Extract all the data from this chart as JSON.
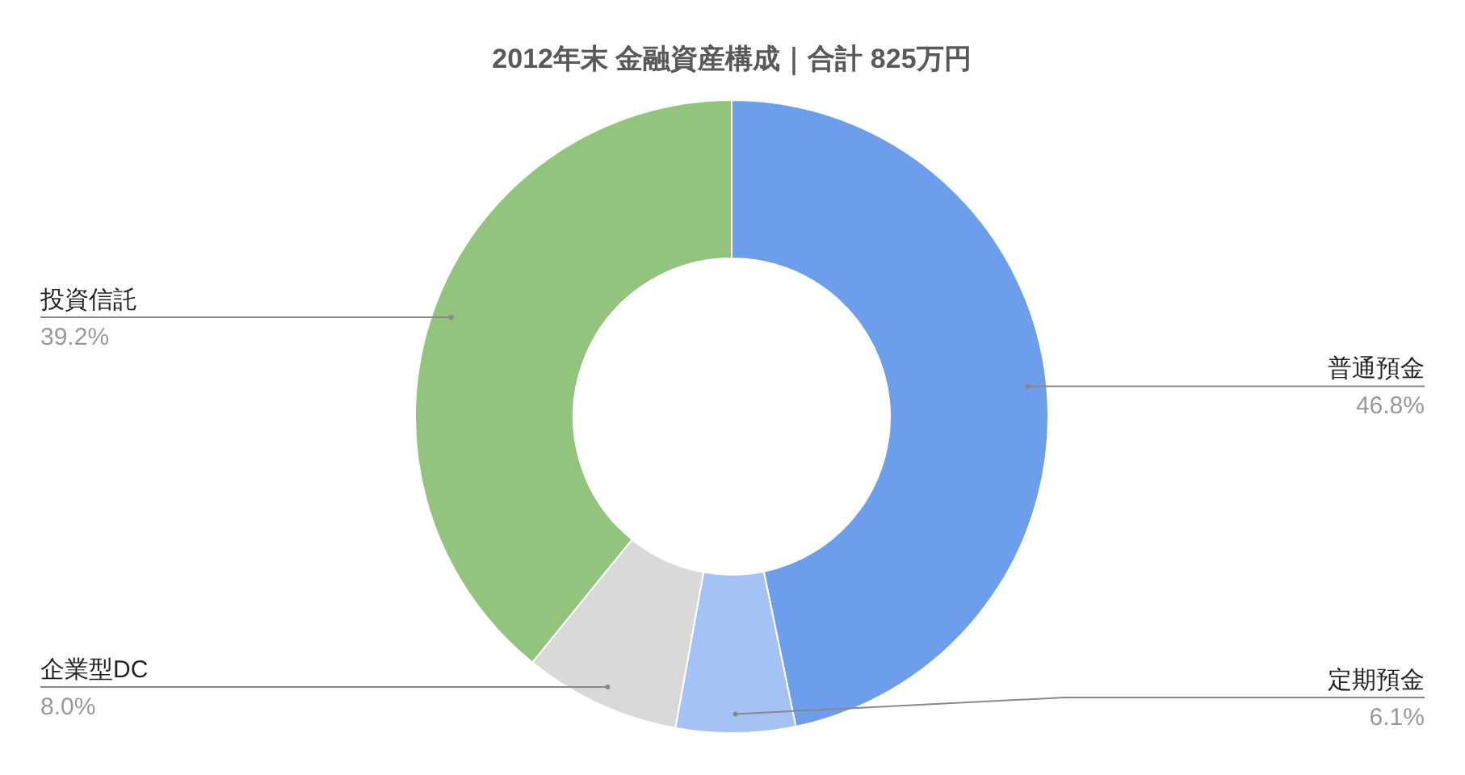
{
  "chart_data": {
    "type": "donut",
    "title": "2012年末 金融資産構成｜合計 825万円",
    "categories": [
      "普通預金",
      "定期預金",
      "企業型DC",
      "投資信託"
    ],
    "values": [
      46.8,
      6.1,
      8.0,
      39.2
    ],
    "colors": [
      "#6d9eeb",
      "#a4c2f4",
      "#d9d9d9",
      "#93c47d"
    ],
    "value_labels": [
      "46.8%",
      "6.1%",
      "8.0%",
      "39.2%"
    ]
  }
}
